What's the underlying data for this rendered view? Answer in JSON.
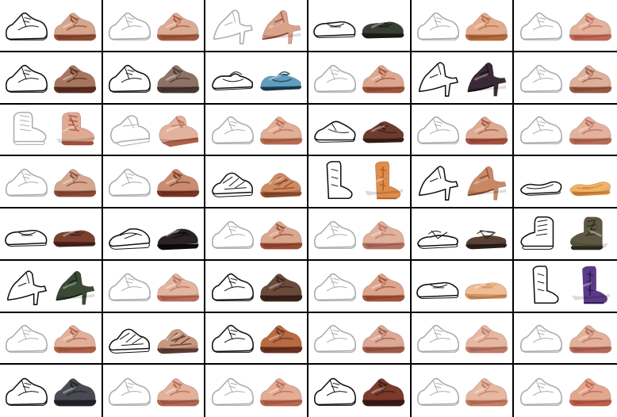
{
  "grid": {
    "columns": 6,
    "rows": 8
  },
  "cells": [
    {
      "shape": "sneaker",
      "flip": false,
      "base": "#d7a48c",
      "dark": "#8f4b32",
      "stroke": "full"
    },
    {
      "shape": "sneaker",
      "flip": false,
      "base": "#dcab93",
      "dark": "#a55a3e",
      "stroke": "faint"
    },
    {
      "shape": "heel",
      "flip": false,
      "base": "#d9a38b",
      "dark": "#9c4a34",
      "stroke": "faint"
    },
    {
      "shape": "loafer",
      "flip": false,
      "base": "#3a3f34",
      "dark": "#1c1f18",
      "stroke": "full"
    },
    {
      "shape": "sneaker",
      "flip": false,
      "base": "#e3ac90",
      "dark": "#b46a3a",
      "stroke": "faint"
    },
    {
      "shape": "sneaker",
      "flip": false,
      "base": "#e2b29a",
      "dark": "#c0685a",
      "stroke": "faint"
    },
    {
      "shape": "sneaker",
      "flip": false,
      "base": "#a7765e",
      "dark": "#5a2c22",
      "stroke": "full"
    },
    {
      "shape": "sneaker",
      "flip": false,
      "base": "#8e7266",
      "dark": "#4a3530",
      "stroke": "full"
    },
    {
      "shape": "maryjane",
      "flip": false,
      "base": "#5e9fbd",
      "dark": "#1f3d52",
      "stroke": "full"
    },
    {
      "shape": "sneaker",
      "flip": false,
      "base": "#dca78f",
      "dark": "#a0523a",
      "stroke": "faint"
    },
    {
      "shape": "heel",
      "flip": false,
      "base": "#3a2a38",
      "dark": "#1a1018",
      "stroke": "full"
    },
    {
      "shape": "sneaker",
      "flip": false,
      "base": "#ddb09a",
      "dark": "#9a5844",
      "stroke": "faint"
    },
    {
      "shape": "boot",
      "flip": false,
      "base": "#deaa92",
      "dark": "#a24e3a",
      "stroke": "faint"
    },
    {
      "shape": "wedge",
      "flip": false,
      "base": "#e3b29c",
      "dark": "#b06048",
      "stroke": "faint"
    },
    {
      "shape": "sneaker",
      "flip": false,
      "base": "#e2ae95",
      "dark": "#b86a50",
      "stroke": "faint"
    },
    {
      "shape": "oxford",
      "flip": false,
      "base": "#6e3b2e",
      "dark": "#3a1e18",
      "stroke": "full"
    },
    {
      "shape": "sneaker",
      "flip": false,
      "base": "#deaa92",
      "dark": "#a4503c",
      "stroke": "faint"
    },
    {
      "shape": "sneaker",
      "flip": false,
      "base": "#e3b19c",
      "dark": "#b86a56",
      "stroke": "faint"
    },
    {
      "shape": "sneaker",
      "flip": false,
      "base": "#d5a68f",
      "dark": "#8c4a36",
      "stroke": "faint"
    },
    {
      "shape": "sneaker",
      "flip": false,
      "base": "#c98c72",
      "dark": "#7a3424",
      "stroke": "faint"
    },
    {
      "shape": "sandal",
      "flip": false,
      "base": "#d08a62",
      "dark": "#8a4a2a",
      "stroke": "full"
    },
    {
      "shape": "tallboot",
      "flip": false,
      "base": "#e08c4a",
      "dark": "#b06024",
      "stroke": "full"
    },
    {
      "shape": "heel",
      "flip": false,
      "base": "#c98864",
      "dark": "#8a4a32",
      "stroke": "full"
    },
    {
      "shape": "flat",
      "flip": false,
      "base": "#f0b266",
      "dark": "#d88a3a",
      "stroke": "full"
    },
    {
      "shape": "loafer",
      "flip": false,
      "base": "#7a4030",
      "dark": "#4a221a",
      "stroke": "full"
    },
    {
      "shape": "slide",
      "flip": false,
      "base": "#2a2428",
      "dark": "#0e0a0c",
      "stroke": "full"
    },
    {
      "shape": "sneaker",
      "flip": false,
      "base": "#d9a88e",
      "dark": "#9a4a34",
      "stroke": "faint"
    },
    {
      "shape": "sneaker",
      "flip": false,
      "base": "#e0b19c",
      "dark": "#b57060",
      "stroke": "faint"
    },
    {
      "shape": "thong",
      "flip": false,
      "base": "#5a4236",
      "dark": "#2a1e18",
      "stroke": "full"
    },
    {
      "shape": "boot",
      "flip": true,
      "base": "#5e5842",
      "dark": "#2a2a1c",
      "stroke": "full"
    },
    {
      "shape": "heel",
      "flip": false,
      "base": "#3a4a34",
      "dark": "#1a2418",
      "stroke": "full"
    },
    {
      "shape": "sneaker",
      "flip": false,
      "base": "#e3b49e",
      "dark": "#bc6c5a",
      "stroke": "faint"
    },
    {
      "shape": "sneaker",
      "flip": false,
      "base": "#6a4a3a",
      "dark": "#3a221a",
      "stroke": "full"
    },
    {
      "shape": "sneaker",
      "flip": false,
      "base": "#dca68c",
      "dark": "#a4503a",
      "stroke": "faint"
    },
    {
      "shape": "loafer",
      "flip": false,
      "base": "#eebd94",
      "dark": "#d8935e",
      "stroke": "full"
    },
    {
      "shape": "tallboot",
      "flip": false,
      "base": "#5a3a8a",
      "dark": "#2a1a4a",
      "stroke": "full"
    },
    {
      "shape": "sneaker",
      "flip": false,
      "base": "#e0b09a",
      "dark": "#b06048",
      "stroke": "faint"
    },
    {
      "shape": "sandal",
      "flip": false,
      "base": "#c99880",
      "dark": "#5a3a30",
      "stroke": "full"
    },
    {
      "shape": "sneaker",
      "flip": false,
      "base": "#b86a40",
      "dark": "#6a3020",
      "stroke": "full"
    },
    {
      "shape": "sneaker",
      "flip": false,
      "base": "#dca995",
      "dark": "#a05a48",
      "stroke": "faint"
    },
    {
      "shape": "sneaker",
      "flip": false,
      "base": "#e6b8a2",
      "dark": "#c07a66",
      "stroke": "faint"
    },
    {
      "shape": "sneaker",
      "flip": false,
      "base": "#e3b19a",
      "dark": "#b8685a",
      "stroke": "faint"
    },
    {
      "shape": "sneaker",
      "flip": false,
      "base": "#4a4a52",
      "dark": "#22222a",
      "stroke": "full"
    },
    {
      "shape": "sneaker",
      "flip": false,
      "base": "#e3b09a",
      "dark": "#b06650",
      "stroke": "faint"
    },
    {
      "shape": "sneaker",
      "flip": false,
      "base": "#e2ad94",
      "dark": "#b8664e",
      "stroke": "faint"
    },
    {
      "shape": "sneaker",
      "flip": false,
      "base": "#7a3a2c",
      "dark": "#3a1a14",
      "stroke": "full"
    },
    {
      "shape": "sneaker",
      "flip": false,
      "base": "#e6b8a0",
      "dark": "#c47a62",
      "stroke": "faint"
    },
    {
      "shape": "sneaker",
      "flip": false,
      "base": "#e3a68e",
      "dark": "#c05e48",
      "stroke": "faint"
    }
  ]
}
